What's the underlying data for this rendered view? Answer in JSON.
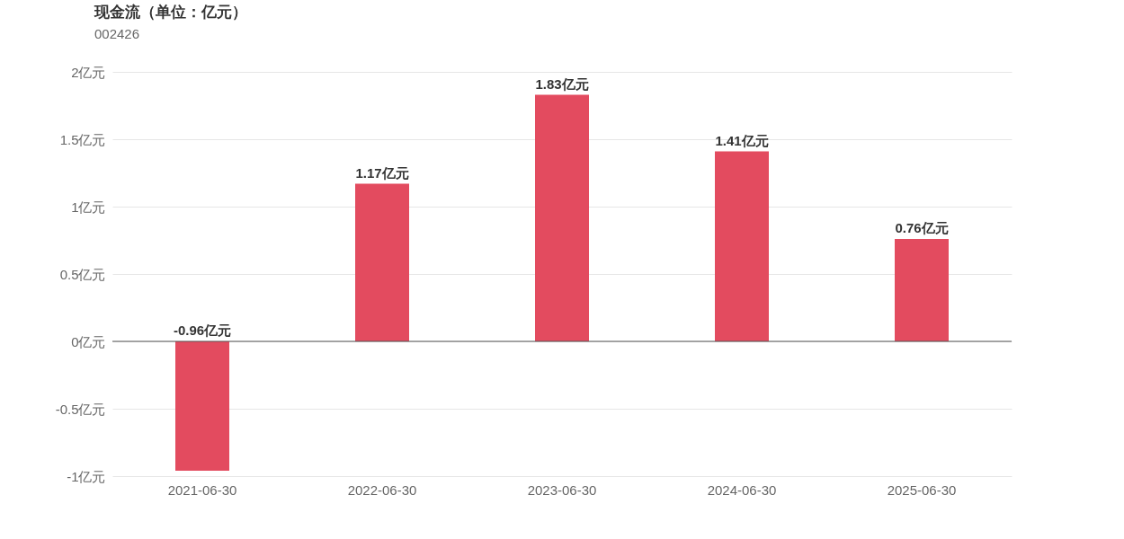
{
  "chart_data": {
    "type": "bar",
    "title": "现金流（单位：亿元）",
    "subtitle": "002426",
    "categories": [
      "2021-06-30",
      "2022-06-30",
      "2023-06-30",
      "2024-06-30",
      "2025-06-30"
    ],
    "values": [
      -0.96,
      1.17,
      1.83,
      1.41,
      0.76
    ],
    "value_labels": [
      "-0.96亿元",
      "1.17亿元",
      "1.83亿元",
      "1.41亿元",
      "0.76亿元"
    ],
    "color": "#e34b5f",
    "ylim": [
      -1,
      2
    ],
    "yticks": [
      {
        "value": -1,
        "label": "-1亿元"
      },
      {
        "value": -0.5,
        "label": "-0.5亿元"
      },
      {
        "value": 0,
        "label": "0亿元"
      },
      {
        "value": 0.5,
        "label": "0.5亿元"
      },
      {
        "value": 1,
        "label": "1亿元"
      },
      {
        "value": 1.5,
        "label": "1.5亿元"
      },
      {
        "value": 2,
        "label": "2亿元"
      }
    ],
    "ref_lines": [
      {
        "axis": "y",
        "value": 0,
        "color": "#555555"
      }
    ],
    "grid": "y"
  }
}
